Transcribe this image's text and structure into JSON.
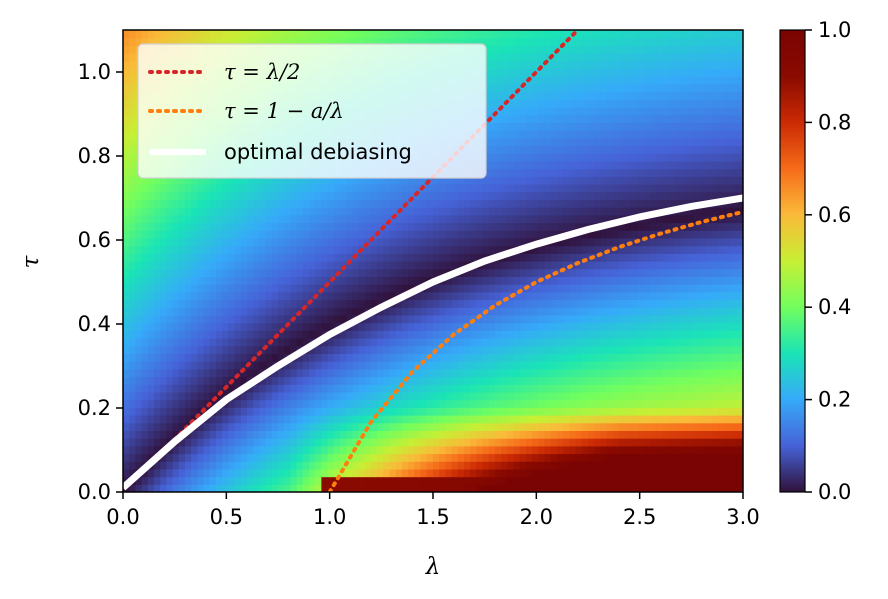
{
  "chart_data": {
    "type": "heatmap",
    "title": "",
    "xlabel": "λ",
    "ylabel": "τ",
    "xlim": [
      0.0,
      3.0
    ],
    "ylim": [
      0.0,
      1.1
    ],
    "x_ticks": [
      "0.0",
      "0.5",
      "1.0",
      "1.5",
      "2.0",
      "2.5",
      "3.0"
    ],
    "y_ticks": [
      "0.0",
      "0.2",
      "0.4",
      "0.6",
      "0.8",
      "1.0"
    ],
    "colormap": "turbo",
    "colorbar": {
      "range": [
        0.0,
        1.0
      ],
      "ticks": [
        "0.0",
        "0.2",
        "0.4",
        "0.6",
        "0.8",
        "1.0"
      ]
    },
    "heatmap_description": "low values (dark) along optimal debiasing curve; high values near tau=0 for lambda>1",
    "legend_location": "upper-left",
    "series": [
      {
        "name": "τ = λ/2",
        "style": "dotted",
        "color": "#d62728",
        "x": [
          0.25,
          0.5,
          1.0,
          1.5,
          2.0,
          2.2
        ],
        "y": [
          0.125,
          0.25,
          0.5,
          0.75,
          1.0,
          1.1
        ]
      },
      {
        "name": "τ = 1 − a/λ",
        "style": "dotted",
        "color": "#ff7f0e",
        "x": [
          1.0,
          1.2,
          1.4,
          1.6,
          1.8,
          2.0,
          2.2,
          2.4,
          2.6,
          2.8,
          3.0
        ],
        "y": [
          0.0,
          0.167,
          0.286,
          0.375,
          0.444,
          0.5,
          0.545,
          0.583,
          0.615,
          0.643,
          0.667
        ]
      },
      {
        "name": "optimal debiasing",
        "style": "solid",
        "color": "#ffffff",
        "x": [
          0.0,
          0.25,
          0.5,
          0.75,
          1.0,
          1.25,
          1.5,
          1.75,
          2.0,
          2.25,
          2.5,
          2.75,
          3.0
        ],
        "y": [
          0.01,
          0.12,
          0.22,
          0.3,
          0.375,
          0.44,
          0.5,
          0.55,
          0.59,
          0.625,
          0.655,
          0.68,
          0.7
        ]
      }
    ]
  },
  "legend": {
    "entries": [
      {
        "label": "τ = λ/2",
        "color": "#d62728"
      },
      {
        "label": "τ = 1 − a/λ",
        "color": "#ff7f0e"
      },
      {
        "label": "optimal debiasing",
        "color": "#ffffff"
      }
    ]
  }
}
